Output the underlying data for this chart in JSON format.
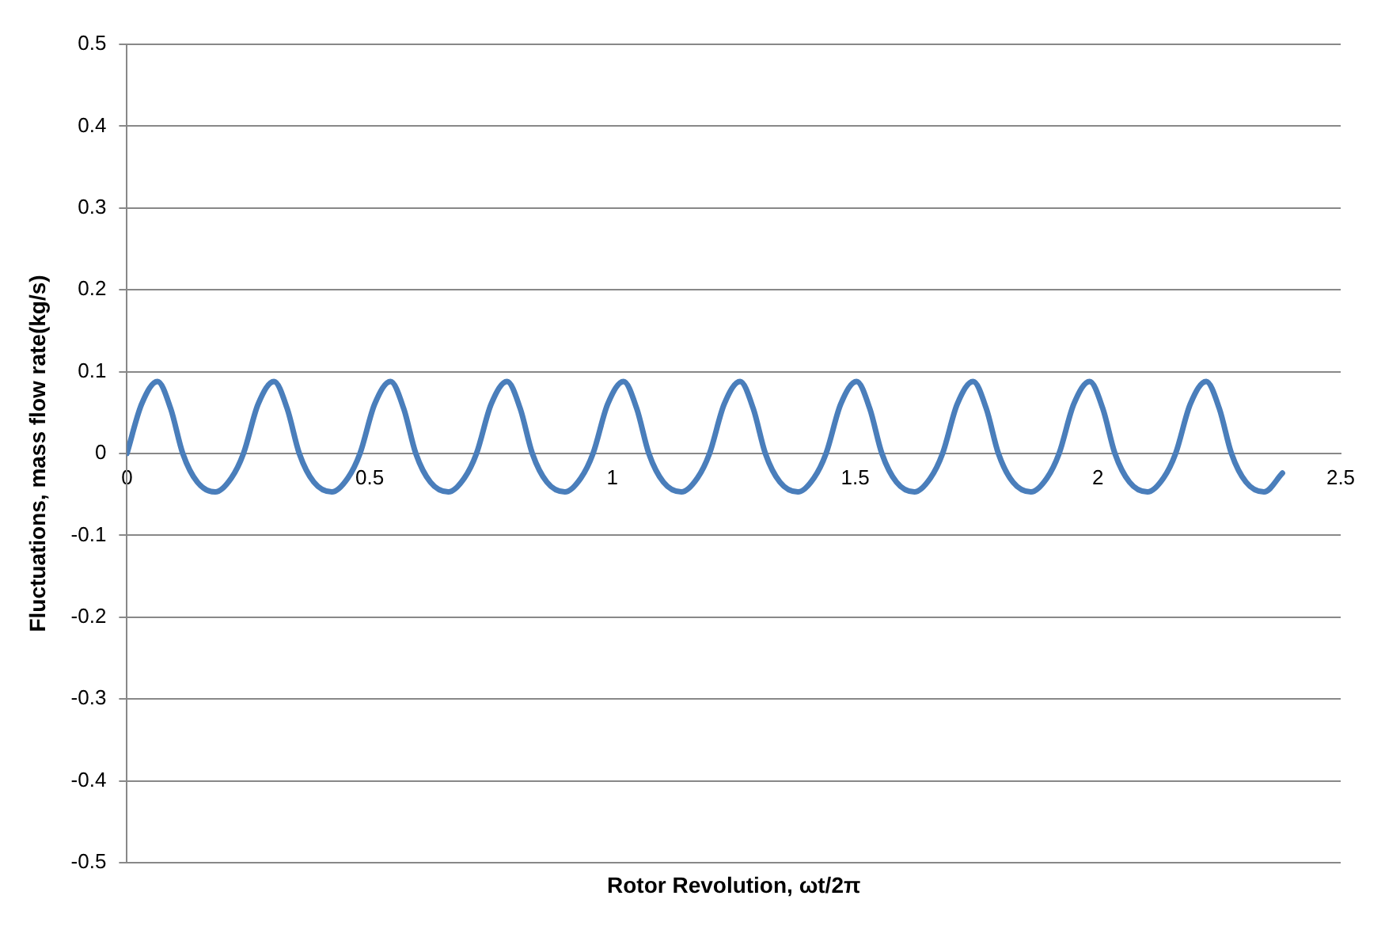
{
  "chart_data": {
    "type": "line",
    "xlabel": "Rotor Revolution, ωt/2π",
    "ylabel": "Fluctuations, mass flow rate(kg/s)",
    "xlim": [
      0,
      2.5
    ],
    "xticks": [
      0,
      0.5,
      1,
      1.5,
      2,
      2.5
    ],
    "ylim": [
      -0.5,
      0.5
    ],
    "yticks": [
      -0.5,
      -0.4,
      -0.3,
      -0.2,
      -0.1,
      0,
      0.1,
      0.2,
      0.3,
      0.4,
      0.5
    ],
    "grid": "y",
    "legend": false,
    "marker": "none",
    "line_style": "solid",
    "series": [
      {
        "color": "#4a7ebb",
        "x": [
          0,
          0.03,
          0.063,
          0.09,
          0.115,
          0.145,
          0.182,
          0.215,
          0.24,
          0.27,
          0.303,
          0.33,
          0.355,
          0.385,
          0.422,
          0.455,
          0.48,
          0.51,
          0.543,
          0.57,
          0.595,
          0.625,
          0.662,
          0.695,
          0.72,
          0.75,
          0.783,
          0.81,
          0.835,
          0.865,
          0.902,
          0.935,
          0.96,
          0.99,
          1.023,
          1.05,
          1.075,
          1.105,
          1.142,
          1.175,
          1.2,
          1.23,
          1.263,
          1.29,
          1.315,
          1.345,
          1.382,
          1.415,
          1.44,
          1.47,
          1.503,
          1.53,
          1.555,
          1.585,
          1.622,
          1.655,
          1.68,
          1.71,
          1.743,
          1.77,
          1.795,
          1.825,
          1.862,
          1.895,
          1.92,
          1.95,
          1.983,
          2.01,
          2.035,
          2.065,
          2.102,
          2.135,
          2.16,
          2.19,
          2.223,
          2.25,
          2.275,
          2.305,
          2.342,
          2.38
        ],
        "values": [
          0,
          0.06,
          0.088,
          0.055,
          0,
          -0.035,
          -0.047,
          -0.03,
          0,
          0.06,
          0.088,
          0.055,
          0,
          -0.035,
          -0.047,
          -0.03,
          0,
          0.06,
          0.088,
          0.055,
          0,
          -0.035,
          -0.047,
          -0.03,
          0,
          0.06,
          0.088,
          0.055,
          0,
          -0.035,
          -0.047,
          -0.03,
          0,
          0.06,
          0.088,
          0.055,
          0,
          -0.035,
          -0.047,
          -0.03,
          0,
          0.06,
          0.088,
          0.055,
          0,
          -0.035,
          -0.047,
          -0.03,
          0,
          0.06,
          0.088,
          0.055,
          0,
          -0.035,
          -0.047,
          -0.03,
          0,
          0.06,
          0.088,
          0.055,
          0,
          -0.035,
          -0.047,
          -0.03,
          0,
          0.06,
          0.088,
          0.055,
          0,
          -0.035,
          -0.047,
          -0.03,
          0,
          0.06,
          0.088,
          0.055,
          0,
          -0.035,
          -0.047,
          -0.024
        ]
      }
    ]
  }
}
